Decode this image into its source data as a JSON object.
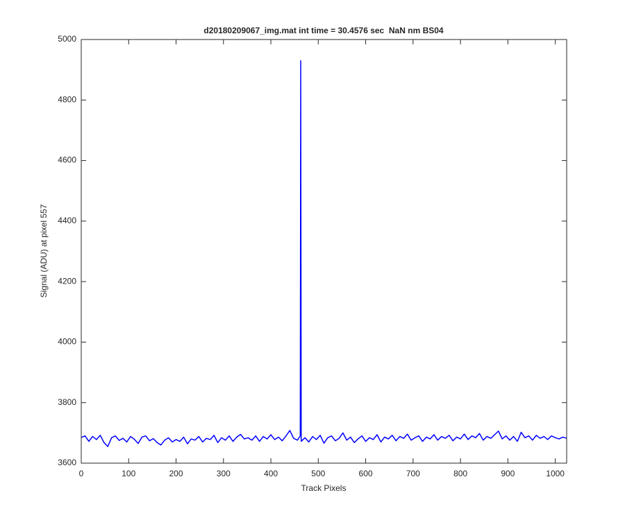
{
  "chart_data": {
    "type": "line",
    "title": "d20180209067_img.mat int time = 30.4576 sec  NaN nm BS04",
    "x_label": "Track Pixels",
    "y_label": "Signal (ADU) at pixel 557",
    "color": "#0000ff",
    "x": [
      0,
      8,
      16,
      24,
      32,
      40,
      48,
      56,
      64,
      72,
      80,
      88,
      96,
      104,
      112,
      120,
      128,
      136,
      144,
      152,
      160,
      168,
      176,
      184,
      192,
      200,
      208,
      216,
      224,
      232,
      240,
      248,
      256,
      264,
      272,
      280,
      288,
      296,
      304,
      312,
      320,
      328,
      336,
      344,
      352,
      360,
      368,
      376,
      384,
      392,
      400,
      408,
      416,
      424,
      432,
      440,
      448,
      456,
      462,
      463,
      464,
      472,
      480,
      488,
      496,
      504,
      512,
      520,
      528,
      536,
      544,
      552,
      560,
      568,
      576,
      584,
      592,
      600,
      608,
      616,
      624,
      632,
      640,
      648,
      656,
      664,
      672,
      680,
      688,
      696,
      704,
      712,
      720,
      728,
      736,
      744,
      752,
      760,
      768,
      776,
      784,
      792,
      800,
      808,
      816,
      824,
      832,
      840,
      848,
      856,
      864,
      872,
      880,
      888,
      896,
      904,
      912,
      920,
      928,
      936,
      944,
      952,
      960,
      968,
      976,
      984,
      992,
      1000,
      1008,
      1016,
      1024
    ],
    "values": [
      3685,
      3690,
      3672,
      3688,
      3678,
      3692,
      3668,
      3655,
      3684,
      3690,
      3675,
      3682,
      3670,
      3688,
      3679,
      3665,
      3686,
      3690,
      3674,
      3681,
      3668,
      3660,
      3676,
      3684,
      3670,
      3678,
      3672,
      3686,
      3664,
      3680,
      3676,
      3688,
      3670,
      3682,
      3678,
      3692,
      3668,
      3684,
      3676,
      3690,
      3672,
      3686,
      3695,
      3680,
      3684,
      3676,
      3690,
      3672,
      3688,
      3680,
      3694,
      3678,
      3686,
      3674,
      3690,
      3708,
      3682,
      3676,
      3690,
      4930,
      3672,
      3684,
      3670,
      3688,
      3678,
      3692,
      3666,
      3684,
      3690,
      3674,
      3682,
      3700,
      3676,
      3686,
      3668,
      3680,
      3690,
      3672,
      3684,
      3678,
      3694,
      3670,
      3686,
      3680,
      3692,
      3674,
      3688,
      3682,
      3696,
      3676,
      3684,
      3690,
      3672,
      3686,
      3680,
      3694,
      3676,
      3688,
      3682,
      3692,
      3674,
      3686,
      3680,
      3696,
      3678,
      3690,
      3684,
      3698,
      3676,
      3688,
      3682,
      3694,
      3706,
      3680,
      3690,
      3676,
      3688,
      3672,
      3702,
      3684,
      3690,
      3676,
      3692,
      3682,
      3688,
      3678,
      3690,
      3684,
      3680,
      3686,
      3682
    ],
    "xlim": [
      0,
      1024
    ],
    "xticks": [
      0,
      100,
      200,
      300,
      400,
      500,
      600,
      700,
      800,
      900,
      1000
    ],
    "ylim": [
      3600,
      5000
    ],
    "yticks": [
      3600,
      3800,
      4000,
      4200,
      4400,
      4600,
      4800,
      5000
    ]
  }
}
